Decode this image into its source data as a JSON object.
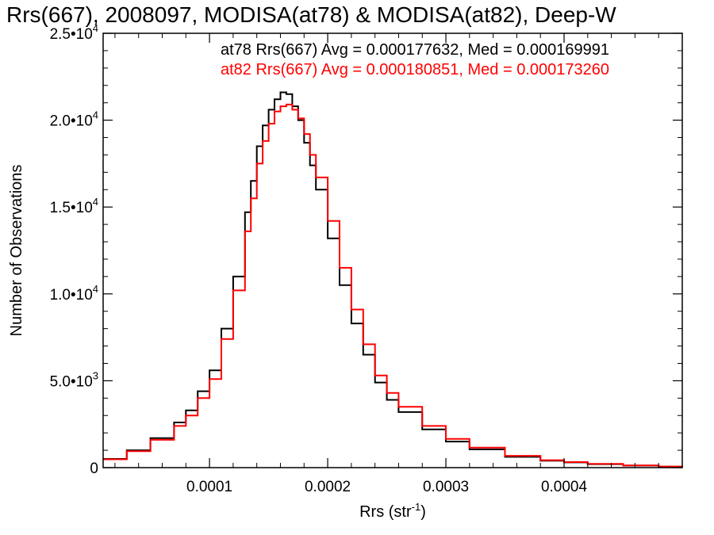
{
  "chart_data": {
    "type": "line",
    "title": "Rrs(667), 2008097, MODISA(at78) & MODISA(at82), Deep-W",
    "xlabel": "Rrs (str",
    "xlabel_sup": "-1",
    "xlabel_close": ")",
    "ylabel": "Number of Observations",
    "xlim": [
      1e-05,
      0.0005
    ],
    "ylim": [
      0,
      25000
    ],
    "x_ticks": [
      {
        "value": 0.0001,
        "label": "0.0001"
      },
      {
        "value": 0.0002,
        "label": "0.0002"
      },
      {
        "value": 0.0003,
        "label": "0.0003"
      },
      {
        "value": 0.0004,
        "label": "0.0004"
      }
    ],
    "y_ticks": [
      {
        "value": 0,
        "label": "0",
        "exp": ""
      },
      {
        "value": 5000,
        "label": "5.0•10",
        "exp": "3"
      },
      {
        "value": 10000,
        "label": "1.0•10",
        "exp": "4"
      },
      {
        "value": 15000,
        "label": "1.5•10",
        "exp": "4"
      },
      {
        "value": 20000,
        "label": "2.0•10",
        "exp": "4"
      },
      {
        "value": 25000,
        "label": "2.5•10",
        "exp": "4"
      }
    ],
    "annotations": [
      {
        "text": "at78 Rrs(667) Avg = 0.000177632, Med = 0.000169991",
        "color": "#000000"
      },
      {
        "text": "at82 Rrs(667) Avg = 0.000180851, Med = 0.000173260",
        "color": "#ff0000"
      }
    ],
    "series": [
      {
        "color": "#000000",
        "x": [
          1e-05,
          3e-05,
          5e-05,
          7e-05,
          8e-05,
          9e-05,
          0.0001,
          0.00011,
          0.00012,
          0.00013,
          0.000135,
          0.00014,
          0.000145,
          0.00015,
          0.000155,
          0.00016,
          0.000165,
          0.00017,
          0.000175,
          0.00018,
          0.000185,
          0.00019,
          0.0002,
          0.00021,
          0.00022,
          0.00023,
          0.00024,
          0.00025,
          0.00026,
          0.00028,
          0.0003,
          0.00032,
          0.00035,
          0.00038,
          0.0004,
          0.00042,
          0.00045,
          0.00048,
          0.0005
        ],
        "values": [
          500,
          1000,
          1700,
          2600,
          3300,
          4400,
          5600,
          8000,
          11000,
          14700,
          16500,
          18500,
          19700,
          20600,
          21200,
          21600,
          21500,
          20800,
          20000,
          18700,
          17400,
          16000,
          13200,
          10500,
          8300,
          6500,
          4900,
          3900,
          3200,
          2200,
          1500,
          1050,
          620,
          400,
          300,
          200,
          120,
          60,
          30
        ]
      },
      {
        "color": "#ff0000",
        "x": [
          1e-05,
          3e-05,
          5e-05,
          7e-05,
          8e-05,
          9e-05,
          0.0001,
          0.00011,
          0.00012,
          0.00013,
          0.000135,
          0.00014,
          0.000145,
          0.00015,
          0.000155,
          0.00016,
          0.000165,
          0.00017,
          0.000175,
          0.00018,
          0.000185,
          0.00019,
          0.0002,
          0.00021,
          0.00022,
          0.00023,
          0.00024,
          0.00025,
          0.00026,
          0.00028,
          0.0003,
          0.00032,
          0.00035,
          0.00038,
          0.0004,
          0.00042,
          0.00045,
          0.00048,
          0.0005
        ],
        "values": [
          480,
          950,
          1600,
          2400,
          3000,
          4000,
          5100,
          7400,
          10200,
          13600,
          15500,
          17500,
          18800,
          19800,
          20500,
          20800,
          20900,
          20600,
          20100,
          19200,
          18000,
          16700,
          14200,
          11500,
          9100,
          7100,
          5300,
          4300,
          3500,
          2400,
          1650,
          1150,
          680,
          430,
          320,
          220,
          130,
          65,
          30
        ]
      }
    ]
  }
}
